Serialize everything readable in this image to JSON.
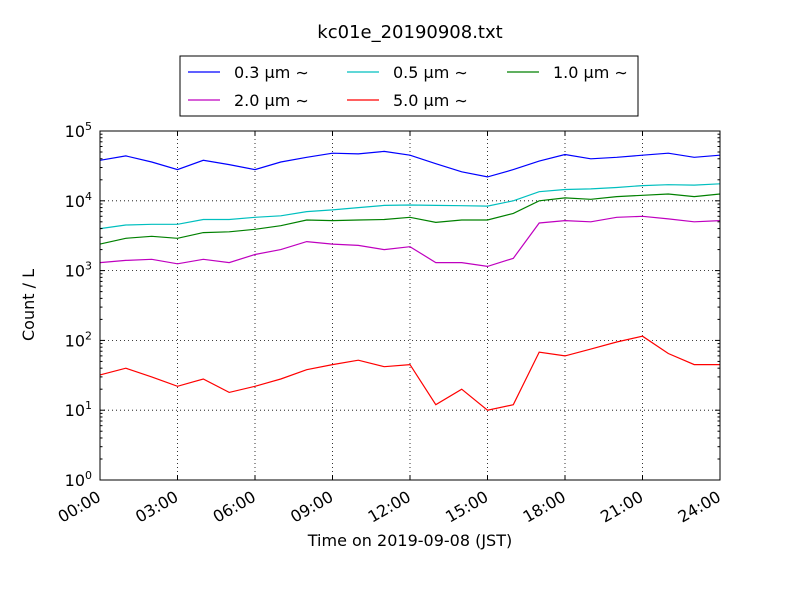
{
  "chart_data": {
    "type": "line",
    "title": "kc01e_20190908.txt",
    "xlabel": "Time on 2019-09-08 (JST)",
    "ylabel": "Count / L",
    "y_scale": "log",
    "ylim": [
      1,
      100000
    ],
    "xlim": [
      "00:00",
      "24:00"
    ],
    "x_ticks": [
      "00:00",
      "03:00",
      "06:00",
      "09:00",
      "12:00",
      "15:00",
      "18:00",
      "21:00",
      "24:00"
    ],
    "y_ticks": [
      {
        "base": "10",
        "exp": "0"
      },
      {
        "base": "10",
        "exp": "1"
      },
      {
        "base": "10",
        "exp": "2"
      },
      {
        "base": "10",
        "exp": "3"
      },
      {
        "base": "10",
        "exp": "4"
      },
      {
        "base": "10",
        "exp": "5"
      }
    ],
    "grid": true,
    "legend_position": "top",
    "x_hours": [
      0,
      1,
      2,
      3,
      4,
      5,
      6,
      7,
      8,
      9,
      10,
      11,
      12,
      13,
      14,
      15,
      16,
      17,
      18,
      19,
      20,
      21,
      22,
      23,
      24
    ],
    "series": [
      {
        "name": "0.3 μm ∼",
        "color": "#0000ff",
        "values": [
          38000,
          44000,
          36000,
          28000,
          38000,
          33000,
          28000,
          36000,
          42000,
          48000,
          47000,
          51000,
          45000,
          34000,
          26000,
          22000,
          28000,
          37000,
          46000,
          40000,
          42000,
          45000,
          48000,
          42000,
          45000
        ]
      },
      {
        "name": "0.5 μm ∼",
        "color": "#00bfbf",
        "values": [
          4000,
          4500,
          4600,
          4600,
          5400,
          5400,
          5800,
          6100,
          7000,
          7400,
          8000,
          8600,
          8700,
          8600,
          8500,
          8400,
          10000,
          13500,
          14500,
          14800,
          15500,
          16500,
          17000,
          16800,
          17500
        ]
      },
      {
        "name": "1.0 μm ∼",
        "color": "#008000",
        "values": [
          2400,
          2900,
          3100,
          2900,
          3500,
          3600,
          3900,
          4400,
          5300,
          5200,
          5300,
          5400,
          5800,
          4900,
          5300,
          5300,
          6600,
          10000,
          11000,
          10500,
          11500,
          12000,
          12500,
          11500,
          12500
        ]
      },
      {
        "name": "2.0 μm ∼",
        "color": "#bf00bf",
        "values": [
          1300,
          1400,
          1450,
          1250,
          1450,
          1300,
          1700,
          2000,
          2600,
          2400,
          2300,
          2000,
          2200,
          1300,
          1300,
          1150,
          1500,
          4800,
          5200,
          5000,
          5800,
          6000,
          5500,
          5000,
          5200
        ]
      },
      {
        "name": "5.0 μm ∼",
        "color": "#ff0000",
        "values": [
          32,
          40,
          30,
          22,
          28,
          18,
          22,
          28,
          38,
          45,
          52,
          42,
          45,
          12,
          20,
          10,
          12,
          68,
          60,
          75,
          95,
          115,
          65,
          45,
          45
        ]
      }
    ]
  }
}
